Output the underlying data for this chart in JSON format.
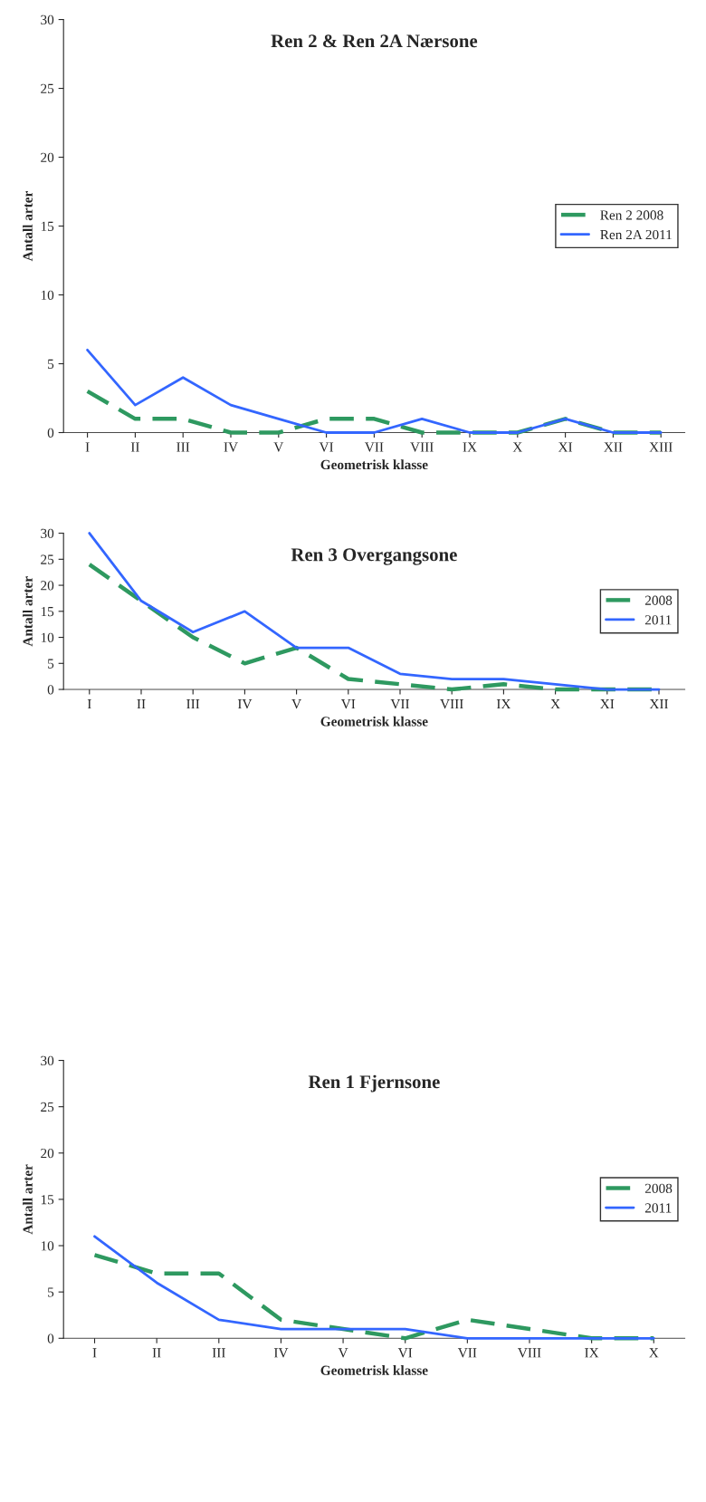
{
  "chart_data": [
    {
      "type": "line",
      "title": "Ren 2 & Ren 2A Nærsone",
      "xlabel": "Geometrisk klasse",
      "ylabel": "Antall arter",
      "categories": [
        "I",
        "II",
        "III",
        "IV",
        "V",
        "VI",
        "VII",
        "VIII",
        "IX",
        "X",
        "XI",
        "XII",
        "XIII"
      ],
      "ylim": [
        0,
        30
      ],
      "yticks": [
        0,
        5,
        10,
        15,
        20,
        25,
        30
      ],
      "legend": "right",
      "series": [
        {
          "name": "Ren 2 2008",
          "color": "#2e9960",
          "line_style": "dashed",
          "values": [
            3,
            1,
            1,
            0,
            0,
            1,
            1,
            0,
            0,
            0,
            1,
            0,
            0
          ]
        },
        {
          "name": "Ren 2A 2011",
          "color": "#3366ff",
          "line_style": "solid",
          "values": [
            6,
            2,
            4,
            2,
            1,
            0,
            0,
            1,
            0,
            0,
            1,
            0,
            0
          ]
        }
      ]
    },
    {
      "type": "line",
      "title": "Ren 3 Overgangsone",
      "xlabel": "Geometrisk klasse",
      "ylabel": "Antall arter",
      "categories": [
        "I",
        "II",
        "III",
        "IV",
        "V",
        "VI",
        "VII",
        "VIII",
        "IX",
        "X",
        "XI",
        "XII"
      ],
      "ylim": [
        0,
        30
      ],
      "yticks": [
        0,
        5,
        10,
        15,
        20,
        25,
        30
      ],
      "legend": "right",
      "series": [
        {
          "name": "2008",
          "color": "#2e9960",
          "line_style": "dashed",
          "values": [
            24,
            17,
            10,
            5,
            8,
            2,
            1,
            0,
            1,
            0,
            0,
            0
          ]
        },
        {
          "name": "2011",
          "color": "#3366ff",
          "line_style": "solid",
          "values": [
            30,
            17,
            11,
            15,
            8,
            8,
            3,
            2,
            2,
            1,
            0,
            0
          ]
        }
      ]
    },
    {
      "type": "line",
      "title": "Ren 1 Fjernsone",
      "xlabel": "Geometrisk klasse",
      "ylabel": "Antall arter",
      "categories": [
        "I",
        "II",
        "III",
        "IV",
        "V",
        "VI",
        "VII",
        "VIII",
        "IX",
        "X"
      ],
      "ylim": [
        0,
        30
      ],
      "yticks": [
        0,
        5,
        10,
        15,
        20,
        25,
        30
      ],
      "legend": "right",
      "series": [
        {
          "name": "2008",
          "color": "#2e9960",
          "line_style": "dashed",
          "values": [
            9,
            7,
            7,
            2,
            1,
            0,
            2,
            1,
            0,
            0
          ]
        },
        {
          "name": "2011",
          "color": "#3366ff",
          "line_style": "solid",
          "values": [
            11,
            6,
            2,
            1,
            1,
            1,
            0,
            0,
            0,
            0
          ]
        }
      ]
    }
  ]
}
